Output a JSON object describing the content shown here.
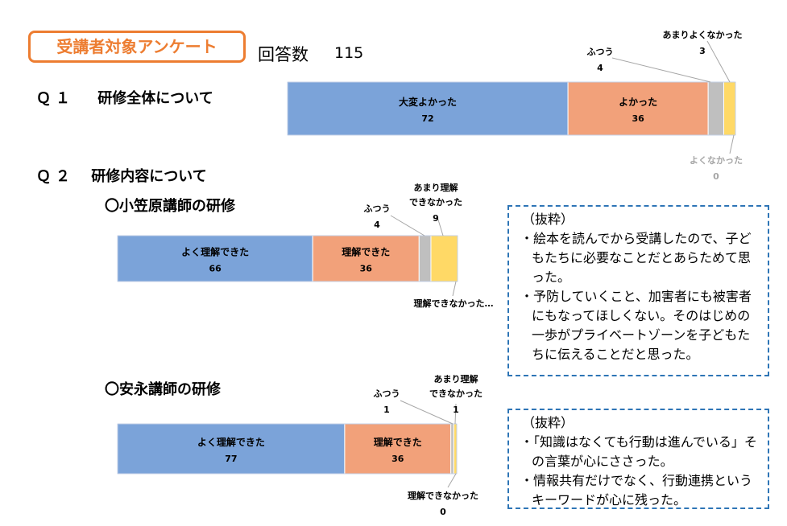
{
  "header": {
    "title": "受講者対象アンケート",
    "responses_label": "回答数",
    "responses_value": "115"
  },
  "q1": {
    "num": "Ｑ１",
    "title": "研修全体について"
  },
  "q2": {
    "num": "Ｑ２",
    "title": "研修内容について",
    "sub1": "〇小笠原講師の研修",
    "sub2": "〇安永講師の研修"
  },
  "colors": {
    "blue": "#7BA3D9",
    "orange": "#F2A17A",
    "gray": "#BFBFBF",
    "yellow": "#FFD966",
    "accent": "#ED7D31",
    "dash": "#2E75B6"
  },
  "chart_data": [
    {
      "type": "bar",
      "stacked": true,
      "title": "研修全体について",
      "series": [
        {
          "name": "大変よかった",
          "value": 72
        },
        {
          "name": "よかった",
          "value": 36
        },
        {
          "name": "ふつう",
          "value": 4
        },
        {
          "name": "あまりよくなかった",
          "value": 3
        },
        {
          "name": "よくなかった",
          "value": 0
        }
      ]
    },
    {
      "type": "bar",
      "stacked": true,
      "title": "小笠原講師の研修",
      "series": [
        {
          "name": "よく理解できた",
          "value": 66
        },
        {
          "name": "理解できた",
          "value": 36
        },
        {
          "name": "ふつう",
          "value": 4
        },
        {
          "name": "あまり理解できなかった",
          "value": 9
        },
        {
          "name": "理解できなかった…",
          "value": null
        }
      ]
    },
    {
      "type": "bar",
      "stacked": true,
      "title": "安永講師の研修",
      "series": [
        {
          "name": "よく理解できた",
          "value": 77
        },
        {
          "name": "理解できた",
          "value": 36
        },
        {
          "name": "ふつう",
          "value": 1
        },
        {
          "name": "あまり理解できなかった",
          "value": 1
        },
        {
          "name": "理解できなかった",
          "value": 0
        }
      ]
    }
  ],
  "excerpt1": {
    "heading": "（抜粋）",
    "items": [
      "・絵本を読んでから受講したので、子どもたちに必要なことだとあらためて思った。",
      "・予防していくこと、加害者にも被害者にもなってほしくない。そのはじめの一歩がプライベートゾーンを子どもたちに伝えることだと思った。"
    ]
  },
  "excerpt2": {
    "heading": "（抜粋）",
    "items": [
      "・「知識はなくても行動は進んでいる」その言葉が心にささった。",
      "・情報共有だけでなく、行動連携というキーワードが心に残った。"
    ]
  }
}
